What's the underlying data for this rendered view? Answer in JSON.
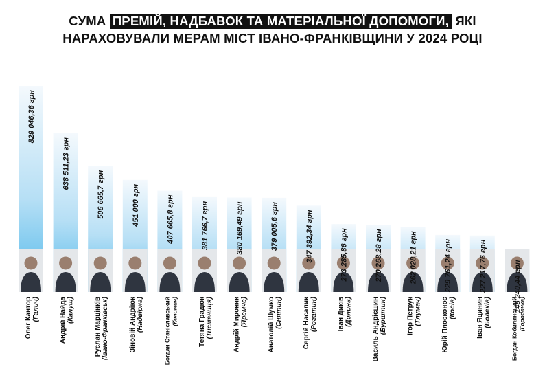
{
  "title": {
    "part1": "СУМА",
    "highlight": "ПРЕМІЙ, НАДБАВОК ТА МАТЕРІАЛЬНОЇ ДОПОМОГИ,",
    "part2": "ЯКІ",
    "line2": "НАРАХОВУВАЛИ МЕРАМ МІСТ ІВАНО-ФРАНКІВЩИНИ У 2024 РОЦІ"
  },
  "colors": {
    "bar_top": "#f4f9fd",
    "bar_bottom": "#4fb8ea",
    "text": "#111111",
    "photo_bg": "#e4e7ea",
    "avatar": "#9a7f6f"
  },
  "chart_data": {
    "type": "bar",
    "title": "СУМА ПРЕМІЙ, НАДБАВОК ТА МАТЕРІАЛЬНОЇ ДОПОМОГИ, ЯКІ НАРАХОВУВАЛИ МЕРАМ МІСТ ІВАНО-ФРАНКІВЩИНИ У 2024 РОЦІ",
    "orientation": "vertical",
    "grid": false,
    "ylim": [
      0,
      829046.36
    ],
    "bars": [
      {
        "name": "Олег Кантор",
        "city": "(Галич)",
        "value": 829046.36,
        "label": "829 046,36 грн"
      },
      {
        "name": "Андрій Найда",
        "city": "(Калуш)",
        "value": 638511.23,
        "label": "638 511,23 грн"
      },
      {
        "name": "Руслан Марцінків",
        "city": "(Івано-Франківськ)",
        "value": 506665.7,
        "label": "506 665,7 грн"
      },
      {
        "name": "Зіновій Андріюк",
        "city": "(Надвірна)",
        "value": 451000,
        "label": "451 000 грн"
      },
      {
        "name": "Богдан Станіславський",
        "city": "(Коломия)",
        "value": 407665.8,
        "label": "407 665,8 грн"
      },
      {
        "name": "Тетяна Градюк",
        "city": "(Тисмениця)",
        "value": 381766.7,
        "label": "381 766,7 грн"
      },
      {
        "name": "Андрій Мироняк",
        "city": "(Яремче)",
        "value": 380169.49,
        "label": "380 169,49 грн"
      },
      {
        "name": "Анатолій Шумко",
        "city": "(Снятин)",
        "value": 379005.6,
        "label": "379 005,6 грн"
      },
      {
        "name": "Сергій Насалик",
        "city": "(Рогатин)",
        "value": 347392.34,
        "label": "347 392,34 грн"
      },
      {
        "name": "Іван Диків",
        "city": "(Долина)",
        "value": 273285.86,
        "label": "273 285,86 грн"
      },
      {
        "name": "Василь Андрієшин",
        "city": "(Бурштин)",
        "value": 270268.28,
        "label": "270 268,28 грн"
      },
      {
        "name": "Ігор Петрук",
        "city": "(Тлумач)",
        "value": 262028.21,
        "label": "262 028,21 грн"
      },
      {
        "name": "Юрій Плосконос",
        "city": "(Косів)",
        "value": 229761.24,
        "label": "229 761,24 грн"
      },
      {
        "name": "Іван Яцинин",
        "city": "(Болехів)",
        "value": 227217.76,
        "label": "227 217,76 грн"
      },
      {
        "name": "Богдан Кобилянський",
        "city": "(Городенка)",
        "value": 145240.44,
        "label": "145 240,44 грн"
      }
    ]
  }
}
